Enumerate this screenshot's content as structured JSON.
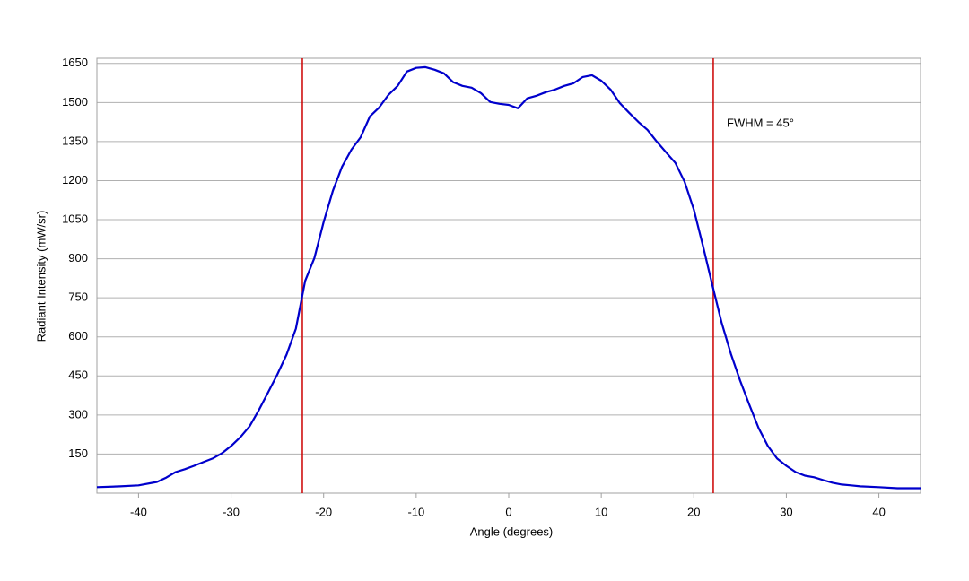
{
  "chart_data": {
    "type": "line",
    "xlabel": "Angle (degrees)",
    "ylabel": "Radiant Intensity (mW/sr)",
    "annotation": "FWHM = 45°",
    "x": [
      -44.5,
      -42,
      -40,
      -38,
      -37,
      -36,
      -35,
      -34,
      -33,
      -32,
      -31,
      -30,
      -29,
      -28,
      -27,
      -26,
      -25,
      -24,
      -23,
      -22,
      -21,
      -20,
      -19,
      -18,
      -17,
      -16,
      -15,
      -14,
      -13,
      -12,
      -11,
      -10,
      -9,
      -8,
      -7,
      -6,
      -5,
      -4,
      -3,
      -2,
      -1,
      0,
      1,
      2,
      3,
      4,
      5,
      6,
      7,
      8,
      9,
      10,
      11,
      12,
      13,
      14,
      15,
      16,
      17,
      18,
      19,
      20,
      21,
      22,
      23,
      24,
      25,
      26,
      27,
      28,
      29,
      30,
      31,
      32,
      33,
      34,
      35,
      36,
      37,
      38,
      40,
      42,
      44.5
    ],
    "series": [
      {
        "name": "Radiant Intensity",
        "color": "#0000cc",
        "values": [
          23,
          26,
          30,
          43,
          60,
          81,
          92,
          105,
          119,
          133,
          153,
          181,
          215,
          257,
          319,
          387,
          456,
          532,
          632,
          815,
          903,
          1041,
          1161,
          1254,
          1319,
          1367,
          1447,
          1481,
          1529,
          1564,
          1619,
          1633,
          1636,
          1626,
          1612,
          1578,
          1564,
          1557,
          1536,
          1502,
          1495,
          1491,
          1478,
          1516,
          1526,
          1540,
          1550,
          1564,
          1574,
          1598,
          1605,
          1584,
          1550,
          1498,
          1461,
          1426,
          1395,
          1350,
          1309,
          1268,
          1196,
          1089,
          948,
          800,
          656,
          535,
          432,
          339,
          250,
          181,
          133,
          105,
          81,
          67,
          61,
          50,
          40,
          33,
          30,
          26,
          23,
          19,
          19
        ]
      }
    ],
    "vlines": [
      -22.3,
      22.1
    ],
    "vline_color": "#cc0000",
    "xlim": [
      -44.5,
      44.5
    ],
    "xticks": [
      -40,
      -30,
      -20,
      -10,
      0,
      10,
      20,
      30,
      40
    ],
    "ylim": [
      0,
      1670
    ],
    "yticks": [
      150,
      300,
      450,
      600,
      750,
      900,
      1050,
      1200,
      1350,
      1500,
      1650
    ],
    "grid": true
  }
}
